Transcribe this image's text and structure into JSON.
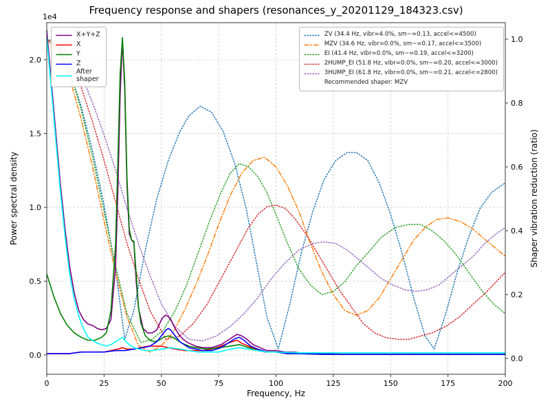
{
  "chart_data": {
    "type": "line",
    "title": "Frequency response and shapers (resonances_y_20201129_184323.csv)",
    "xlabel": "Frequency, Hz",
    "ylabel_left": "Power spectral density",
    "ylabel_right": "Shaper vibration reduction (ratio)",
    "left_axis_multiplier": "1e4",
    "grid": true,
    "legend_psd_position": "upper left",
    "legend_shaper_position": "upper right",
    "x_axis": {
      "min": 0,
      "max": 200,
      "tick_values": [
        0,
        25,
        50,
        75,
        100,
        125,
        150,
        175,
        200
      ],
      "tick_labels": [
        "0",
        "25",
        "50",
        "75",
        "100",
        "125",
        "150",
        "175",
        "200"
      ]
    },
    "left_axis": {
      "min": 0,
      "max": 2.0,
      "tick_values": [
        0,
        0.5,
        1.0,
        1.5,
        2.0
      ],
      "tick_labels": [
        "0.0",
        "0.5",
        "1.0",
        "1.5",
        "2.0"
      ]
    },
    "right_axis": {
      "min": 0,
      "max": 1.0,
      "tick_values": [
        0,
        0.2,
        0.4,
        0.6,
        0.8,
        1.0
      ],
      "tick_labels": [
        "0.0",
        "0.2",
        "0.4",
        "0.6",
        "0.8",
        "1.0"
      ]
    },
    "psd_series": [
      {
        "name": "X+Y+Z",
        "legend_label": "X+Y+Z",
        "color": "#800080",
        "style": "solid",
        "x": [
          0,
          2,
          4,
          6,
          8,
          10,
          12,
          14,
          16,
          18,
          20,
          22,
          24,
          26,
          28,
          30,
          31,
          32,
          33,
          34,
          35,
          36,
          37,
          38,
          39,
          40,
          42,
          44,
          46,
          48,
          50,
          51,
          52,
          53,
          54,
          56,
          58,
          60,
          62,
          65,
          68,
          72,
          76,
          79,
          81,
          83,
          85,
          87,
          90,
          93,
          96,
          100,
          104,
          108,
          112,
          120,
          130,
          145,
          170,
          200
        ],
        "y": [
          2.2,
          1.85,
          1.5,
          1.15,
          0.85,
          0.6,
          0.42,
          0.3,
          0.24,
          0.21,
          0.2,
          0.18,
          0.17,
          0.18,
          0.24,
          0.6,
          1.1,
          1.75,
          2.13,
          1.8,
          1.15,
          0.82,
          0.78,
          0.76,
          0.5,
          0.32,
          0.18,
          0.15,
          0.15,
          0.17,
          0.24,
          0.26,
          0.27,
          0.26,
          0.24,
          0.18,
          0.13,
          0.1,
          0.08,
          0.06,
          0.05,
          0.05,
          0.07,
          0.1,
          0.12,
          0.14,
          0.13,
          0.11,
          0.07,
          0.05,
          0.03,
          0.03,
          0.02,
          0.02,
          0.01,
          0.01,
          0.005,
          0.005,
          0.005,
          0.005
        ]
      },
      {
        "name": "X",
        "legend_label": "X",
        "color": "#ff0000",
        "style": "solid",
        "x": [
          0,
          5,
          10,
          15,
          20,
          25,
          28,
          31,
          33,
          35,
          38,
          41,
          44,
          47,
          50,
          53,
          56,
          60,
          64,
          68,
          72,
          76,
          79,
          81,
          83,
          85,
          88,
          91,
          95,
          100,
          105,
          110,
          120,
          140,
          170,
          200
        ],
        "y": [
          0.01,
          0.01,
          0.01,
          0.02,
          0.02,
          0.02,
          0.03,
          0.04,
          0.05,
          0.04,
          0.04,
          0.05,
          0.06,
          0.06,
          0.06,
          0.05,
          0.04,
          0.03,
          0.03,
          0.03,
          0.04,
          0.06,
          0.08,
          0.09,
          0.1,
          0.08,
          0.06,
          0.04,
          0.02,
          0.02,
          0.01,
          0.01,
          0.005,
          0.005,
          0.005,
          0.005
        ]
      },
      {
        "name": "Y",
        "legend_label": "Y",
        "color": "#008000",
        "style": "solid",
        "x": [
          0,
          3,
          6,
          9,
          12,
          15,
          18,
          21,
          24,
          26,
          28,
          30,
          31,
          32,
          33,
          34,
          35,
          36,
          37,
          38,
          39,
          40,
          41,
          43,
          45,
          47,
          49,
          51,
          53,
          55,
          57,
          59,
          62,
          65,
          70,
          75,
          80,
          84,
          88,
          92,
          96,
          100,
          105,
          110,
          120,
          140,
          170,
          200
        ],
        "y": [
          0.55,
          0.4,
          0.28,
          0.2,
          0.15,
          0.12,
          0.1,
          0.1,
          0.12,
          0.15,
          0.3,
          0.75,
          1.3,
          1.9,
          2.15,
          1.85,
          1.2,
          0.85,
          0.78,
          0.77,
          0.55,
          0.33,
          0.22,
          0.13,
          0.1,
          0.09,
          0.1,
          0.12,
          0.13,
          0.12,
          0.1,
          0.08,
          0.06,
          0.05,
          0.04,
          0.05,
          0.06,
          0.07,
          0.05,
          0.03,
          0.02,
          0.02,
          0.01,
          0.01,
          0.005,
          0.005,
          0.005,
          0.005
        ]
      },
      {
        "name": "Z",
        "legend_label": "Z",
        "color": "#0000ff",
        "style": "solid",
        "x": [
          0,
          5,
          10,
          15,
          20,
          25,
          30,
          34,
          38,
          42,
          45,
          48,
          50,
          52,
          53,
          54,
          56,
          58,
          60,
          62,
          65,
          68,
          72,
          76,
          79,
          82,
          84,
          86,
          89,
          92,
          96,
          100,
          105,
          110,
          120,
          140,
          170,
          200
        ],
        "y": [
          0.01,
          0.01,
          0.01,
          0.02,
          0.02,
          0.02,
          0.03,
          0.03,
          0.04,
          0.05,
          0.06,
          0.09,
          0.13,
          0.17,
          0.18,
          0.17,
          0.13,
          0.09,
          0.07,
          0.05,
          0.04,
          0.03,
          0.03,
          0.05,
          0.08,
          0.11,
          0.12,
          0.1,
          0.06,
          0.04,
          0.02,
          0.02,
          0.01,
          0.01,
          0.005,
          0.005,
          0.005,
          0.005
        ]
      },
      {
        "name": "After shaper",
        "legend_label": "After\nshaper",
        "color": "#00ffff",
        "style": "solid",
        "x": [
          0,
          2,
          4,
          6,
          8,
          10,
          12,
          14,
          16,
          18,
          20,
          22,
          24,
          26,
          28,
          30,
          32,
          33,
          34,
          36,
          38,
          40,
          43,
          46,
          50,
          54,
          58,
          62,
          66,
          70,
          75,
          80,
          84,
          88,
          92,
          96,
          100,
          110,
          120,
          140,
          170,
          200
        ],
        "y": [
          2.15,
          1.8,
          1.45,
          1.1,
          0.8,
          0.55,
          0.38,
          0.26,
          0.18,
          0.12,
          0.1,
          0.08,
          0.07,
          0.06,
          0.07,
          0.09,
          0.11,
          0.12,
          0.1,
          0.07,
          0.05,
          0.04,
          0.03,
          0.03,
          0.04,
          0.05,
          0.04,
          0.03,
          0.02,
          0.02,
          0.02,
          0.04,
          0.05,
          0.04,
          0.03,
          0.02,
          0.02,
          0.015,
          0.015,
          0.015,
          0.015,
          0.015
        ]
      }
    ],
    "shaper_series": [
      {
        "name": "ZV",
        "label": "ZV (34.4 Hz, vibr=4.0%, sm~=0.13, accel<=4500)",
        "color": "#1f77b4",
        "style": "dotted",
        "x": [
          0,
          5,
          10,
          15,
          20,
          25,
          30,
          34,
          38,
          43,
          48,
          53,
          58,
          62,
          67,
          72,
          77,
          82,
          87,
          92,
          96,
          101,
          106,
          111,
          116,
          121,
          126,
          131,
          135,
          140,
          145,
          150,
          155,
          160,
          165,
          169,
          174,
          179,
          184,
          189,
          194,
          200
        ],
        "y": [
          1.0,
          0.97,
          0.9,
          0.79,
          0.65,
          0.48,
          0.28,
          0.06,
          0.15,
          0.34,
          0.5,
          0.62,
          0.71,
          0.76,
          0.79,
          0.77,
          0.71,
          0.61,
          0.47,
          0.28,
          0.13,
          0.03,
          0.17,
          0.33,
          0.46,
          0.56,
          0.62,
          0.645,
          0.645,
          0.62,
          0.55,
          0.45,
          0.33,
          0.19,
          0.07,
          0.03,
          0.14,
          0.27,
          0.38,
          0.47,
          0.52,
          0.55
        ]
      },
      {
        "name": "MZV",
        "label": "MZV (34.6 Hz, vibr=0.0%, sm~=0.17, accel<=3500)",
        "color": "#ff7f0e",
        "style": "dashdot",
        "x": [
          0,
          5,
          10,
          15,
          20,
          25,
          30,
          35,
          40,
          45,
          50,
          55,
          60,
          65,
          70,
          75,
          80,
          85,
          90,
          95,
          100,
          105,
          110,
          115,
          120,
          125,
          130,
          135,
          140,
          145,
          150,
          155,
          160,
          165,
          170,
          175,
          180,
          185,
          190,
          195,
          200
        ],
        "y": [
          1.0,
          0.96,
          0.88,
          0.75,
          0.6,
          0.43,
          0.27,
          0.13,
          0.04,
          0.02,
          0.04,
          0.08,
          0.15,
          0.23,
          0.32,
          0.42,
          0.51,
          0.58,
          0.62,
          0.63,
          0.6,
          0.54,
          0.46,
          0.36,
          0.27,
          0.2,
          0.15,
          0.135,
          0.15,
          0.19,
          0.25,
          0.31,
          0.37,
          0.41,
          0.435,
          0.44,
          0.43,
          0.41,
          0.38,
          0.35,
          0.32
        ]
      },
      {
        "name": "EI",
        "label": "EI (41.4 Hz, vibr=0.0%, sm~=0.19, accel<=3200)",
        "color": "#2ca02c",
        "style": "dotted",
        "x": [
          0,
          5,
          10,
          15,
          20,
          25,
          30,
          35,
          41,
          46,
          51,
          56,
          61,
          66,
          71,
          76,
          80,
          84,
          88,
          92,
          96,
          100,
          105,
          110,
          115,
          120,
          125,
          130,
          135,
          140,
          146,
          152,
          158,
          163,
          168,
          173,
          178,
          184,
          190,
          195,
          200
        ],
        "y": [
          1.0,
          0.97,
          0.9,
          0.78,
          0.63,
          0.46,
          0.29,
          0.14,
          0.05,
          0.06,
          0.09,
          0.15,
          0.23,
          0.33,
          0.43,
          0.52,
          0.58,
          0.61,
          0.6,
          0.57,
          0.52,
          0.45,
          0.36,
          0.28,
          0.23,
          0.2,
          0.21,
          0.24,
          0.29,
          0.33,
          0.38,
          0.41,
          0.42,
          0.42,
          0.4,
          0.37,
          0.33,
          0.27,
          0.21,
          0.17,
          0.14
        ]
      },
      {
        "name": "2HUMP_EI",
        "label": "2HUMP_EI (51.8 Hz, vibr=0.0%, sm~=0.20, accel<=3000)",
        "color": "#d62728",
        "style": "dotted",
        "x": [
          0,
          5,
          10,
          15,
          20,
          25,
          30,
          35,
          40,
          45,
          52,
          58,
          64,
          70,
          76,
          82,
          88,
          92,
          96,
          100,
          104,
          108,
          113,
          118,
          123,
          128,
          133,
          138,
          143,
          148,
          153,
          158,
          163,
          168,
          174,
          180,
          186,
          192,
          200
        ],
        "y": [
          1.0,
          0.98,
          0.93,
          0.85,
          0.74,
          0.62,
          0.49,
          0.36,
          0.25,
          0.15,
          0.06,
          0.07,
          0.11,
          0.17,
          0.25,
          0.33,
          0.41,
          0.45,
          0.475,
          0.48,
          0.47,
          0.44,
          0.39,
          0.33,
          0.27,
          0.21,
          0.16,
          0.11,
          0.08,
          0.065,
          0.06,
          0.06,
          0.07,
          0.08,
          0.1,
          0.13,
          0.17,
          0.21,
          0.27
        ]
      },
      {
        "name": "3HUMP_EI",
        "label": "3HUMP_EI (61.8 Hz, vibr=0.0%, sm~=0.21, accel<=2800)",
        "color": "#9467bd",
        "style": "dotted",
        "x": [
          0,
          5,
          10,
          15,
          20,
          25,
          30,
          35,
          40,
          45,
          50,
          56,
          62,
          68,
          74,
          80,
          86,
          92,
          98,
          104,
          110,
          116,
          121,
          126,
          131,
          136,
          141,
          146,
          151,
          156,
          161,
          166,
          171,
          176,
          181,
          186,
          191,
          196,
          200
        ],
        "y": [
          1.0,
          0.99,
          0.95,
          0.89,
          0.8,
          0.7,
          0.59,
          0.47,
          0.36,
          0.26,
          0.17,
          0.1,
          0.06,
          0.055,
          0.07,
          0.1,
          0.14,
          0.19,
          0.25,
          0.3,
          0.34,
          0.36,
          0.365,
          0.36,
          0.34,
          0.31,
          0.28,
          0.25,
          0.23,
          0.215,
          0.21,
          0.215,
          0.23,
          0.26,
          0.29,
          0.32,
          0.36,
          0.39,
          0.41
        ]
      }
    ],
    "recommended_label": "Recommended shaper: MZV"
  }
}
